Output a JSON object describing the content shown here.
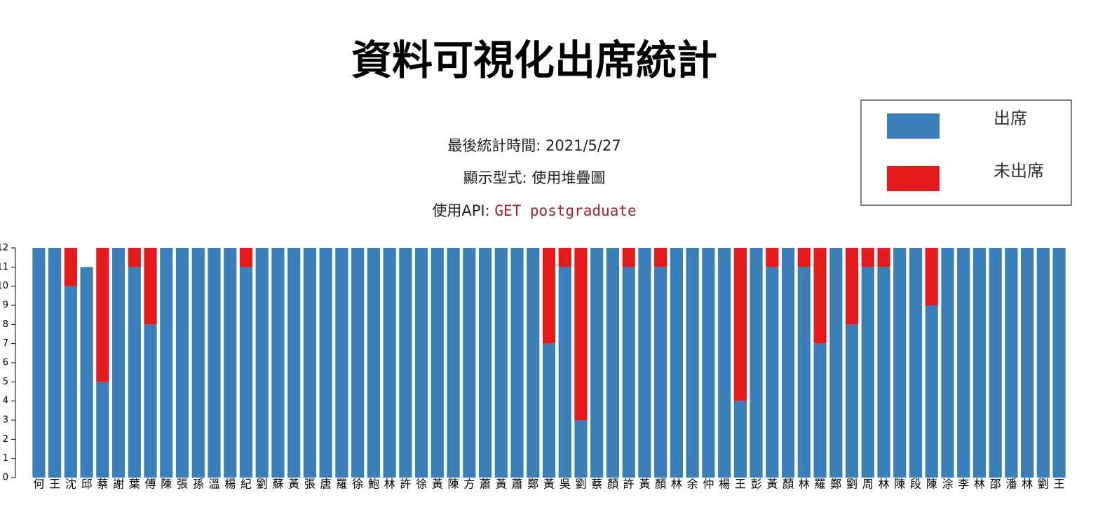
{
  "header": {
    "title": "資料可視化出席統計",
    "info": [
      "最後統計時間: 2021/5/27",
      "顯示型式: 使用堆疊圖"
    ],
    "api_label": "使用API:",
    "api_code": "GET postgraduate"
  },
  "chart_data": {
    "type": "stacked_bar",
    "categories": [
      "何",
      "王",
      "沈",
      "邱",
      "蔡",
      "謝",
      "葉",
      "傅",
      "陳",
      "張",
      "孫",
      "溫",
      "楊",
      "紀",
      "劉",
      "蘇",
      "黃",
      "張",
      "唐",
      "羅",
      "徐",
      "鮑",
      "林",
      "許",
      "徐",
      "黃",
      "陳",
      "方",
      "蕭",
      "黃",
      "蕭",
      "鄭",
      "黃",
      "吳",
      "劉",
      "蔡",
      "顏",
      "許",
      "黃",
      "顏",
      "林",
      "余",
      "仲",
      "楊",
      "王",
      "彭",
      "黃",
      "顏",
      "林",
      "羅",
      "鄭",
      "劉",
      "周",
      "林",
      "陳",
      "段",
      "陳",
      "涂",
      "李",
      "林",
      "邵",
      "潘",
      "林",
      "劉",
      "王"
    ],
    "series": [
      {
        "name": "出席",
        "color": "#3a7fba",
        "values": [
          12,
          12,
          10,
          11,
          5,
          12,
          11,
          8,
          12,
          12,
          12,
          12,
          12,
          11,
          12,
          12,
          12,
          12,
          12,
          12,
          12,
          12,
          12,
          12,
          12,
          12,
          12,
          12,
          12,
          12,
          12,
          12,
          7,
          11,
          3,
          12,
          12,
          11,
          12,
          11,
          12,
          12,
          12,
          12,
          4,
          12,
          11,
          12,
          11,
          7,
          12,
          8,
          11,
          11,
          12,
          12,
          9,
          12,
          12,
          12,
          12,
          12,
          12,
          12,
          12
        ]
      },
      {
        "name": "未出席",
        "color": "#e41a1c",
        "values": [
          0,
          0,
          2,
          0,
          7,
          0,
          1,
          4,
          0,
          0,
          0,
          0,
          0,
          1,
          0,
          0,
          0,
          0,
          0,
          0,
          0,
          0,
          0,
          0,
          0,
          0,
          0,
          0,
          0,
          0,
          0,
          0,
          5,
          1,
          9,
          0,
          0,
          1,
          0,
          1,
          0,
          0,
          0,
          0,
          8,
          0,
          1,
          0,
          1,
          5,
          0,
          4,
          1,
          1,
          0,
          0,
          3,
          0,
          0,
          0,
          0,
          0,
          0,
          0,
          0
        ]
      }
    ],
    "ylim": [
      0,
      12
    ],
    "yticks": [
      0,
      1,
      2,
      3,
      4,
      5,
      6,
      7,
      8,
      9,
      10,
      11,
      12
    ]
  }
}
